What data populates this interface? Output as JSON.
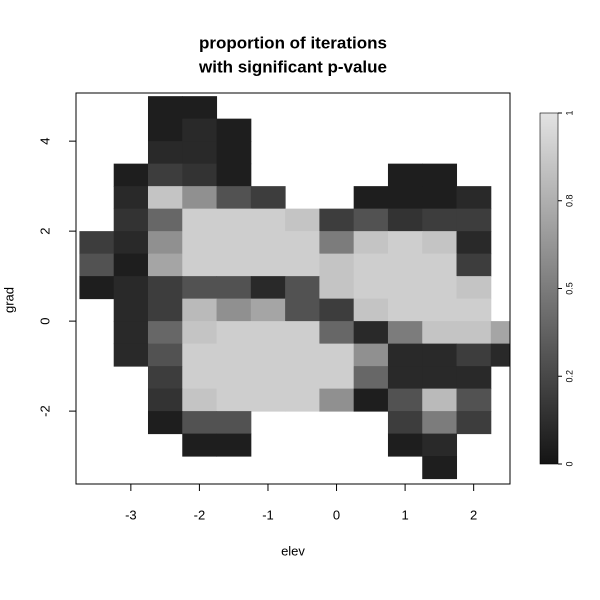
{
  "chart_data": {
    "type": "heatmap",
    "title": [
      "proportion of iterations",
      "with significant p-value"
    ],
    "x_label": "elev",
    "y_label": "grad",
    "xlim": [
      -3.8,
      2.53
    ],
    "ylim": [
      -3.62,
      5.07
    ],
    "xticks": [
      -3,
      -2,
      -1,
      0,
      1,
      2
    ],
    "yticks": [
      -2,
      0,
      2,
      4
    ],
    "x": [
      -3.5,
      -3,
      -2.5,
      -2,
      -1.5,
      -1,
      -0.5,
      0,
      0.5,
      1,
      1.5,
      2,
      2.5
    ],
    "y": [
      4.75,
      4.25,
      3.75,
      3.25,
      2.75,
      2.25,
      1.75,
      1.25,
      0.75,
      0.25,
      -0.25,
      -0.75,
      -1.25,
      -1.75,
      -2.25,
      -2.75,
      -3.25
    ],
    "z": [
      [
        null,
        null,
        0.05,
        0.05,
        null,
        null,
        null,
        null,
        null,
        null,
        null,
        null,
        null
      ],
      [
        null,
        null,
        0.05,
        0.1,
        0.05,
        null,
        null,
        null,
        null,
        null,
        null,
        null,
        null
      ],
      [
        null,
        null,
        0.1,
        0.1,
        0.05,
        null,
        null,
        null,
        null,
        null,
        null,
        null,
        null
      ],
      [
        null,
        0.05,
        0.2,
        0.15,
        0.05,
        null,
        null,
        null,
        null,
        0.05,
        0.05,
        null,
        null
      ],
      [
        null,
        0.1,
        0.85,
        0.6,
        0.3,
        0.2,
        null,
        null,
        0.05,
        0.05,
        0.05,
        0.1,
        null
      ],
      [
        null,
        0.15,
        0.4,
        0.9,
        0.9,
        0.9,
        0.85,
        0.2,
        0.3,
        0.15,
        0.2,
        0.2,
        null
      ],
      [
        0.2,
        0.1,
        0.6,
        0.9,
        0.9,
        0.9,
        0.9,
        0.5,
        0.85,
        0.9,
        0.85,
        0.1,
        null
      ],
      [
        0.3,
        0.05,
        0.7,
        0.9,
        0.9,
        0.9,
        0.9,
        0.85,
        0.9,
        0.9,
        0.9,
        0.2,
        null
      ],
      [
        0.05,
        0.1,
        0.2,
        0.3,
        0.3,
        0.1,
        0.3,
        0.85,
        0.9,
        0.9,
        0.9,
        0.85,
        null
      ],
      [
        null,
        0.1,
        0.2,
        0.8,
        0.6,
        0.7,
        0.3,
        0.2,
        0.85,
        0.9,
        0.9,
        0.9,
        null
      ],
      [
        null,
        0.1,
        0.4,
        0.85,
        0.9,
        0.9,
        0.9,
        0.4,
        0.1,
        0.5,
        0.85,
        0.85,
        0.7
      ],
      [
        null,
        0.1,
        0.3,
        0.9,
        0.9,
        0.9,
        0.9,
        0.9,
        0.6,
        0.1,
        0.1,
        0.2,
        0.1
      ],
      [
        null,
        null,
        0.2,
        0.9,
        0.9,
        0.9,
        0.9,
        0.9,
        0.4,
        0.1,
        0.1,
        0.1,
        null
      ],
      [
        null,
        null,
        0.15,
        0.85,
        0.9,
        0.9,
        0.9,
        0.6,
        0.05,
        0.3,
        0.8,
        0.3,
        null
      ],
      [
        null,
        null,
        0.05,
        0.3,
        0.3,
        null,
        null,
        null,
        null,
        0.2,
        0.5,
        0.2,
        null
      ],
      [
        null,
        null,
        null,
        0.05,
        0.05,
        null,
        null,
        null,
        null,
        0.05,
        0.1,
        null,
        null
      ],
      [
        null,
        null,
        null,
        null,
        null,
        null,
        null,
        null,
        null,
        null,
        0.05,
        null,
        null
      ]
    ],
    "colorscale": {
      "colors": [
        "#141414",
        "#e3e3e3"
      ],
      "lim": [
        0,
        1
      ],
      "ticks": [
        0,
        {
          "value": 0.25,
          "label": "0.2"
        },
        0.5,
        {
          "value": 0.75,
          "label": "0.8"
        },
        1
      ]
    }
  }
}
